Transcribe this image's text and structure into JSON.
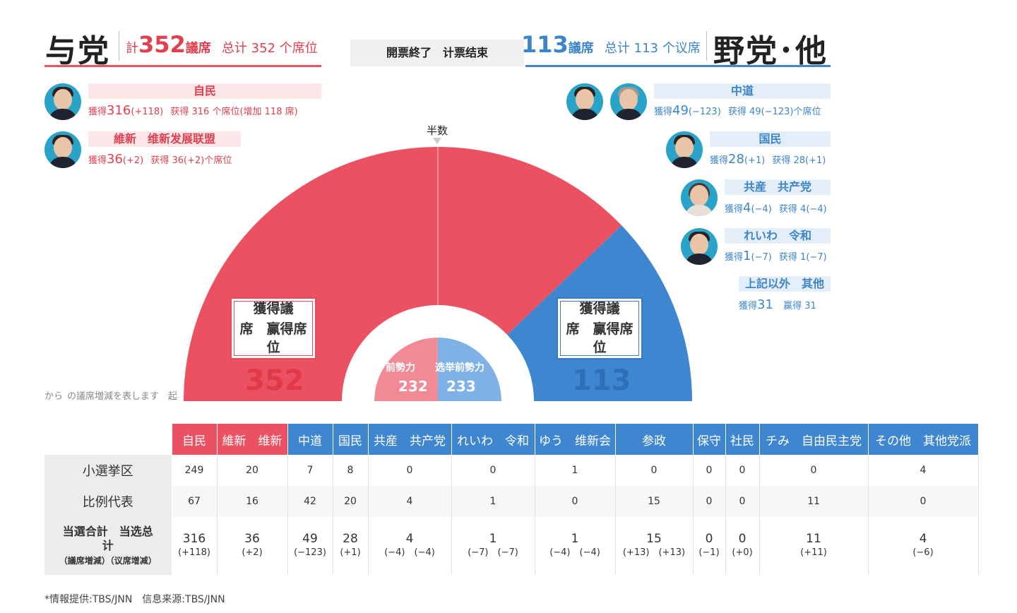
{
  "colors": {
    "ruling": "#ec5161",
    "opposition": "#3e86cf",
    "ruling_text": "#e0404f",
    "opposition_text": "#3d85c8"
  },
  "ruling": {
    "title": "与党",
    "prefix": "計",
    "seats": "352",
    "unit": "議席",
    "cn": "总计 352 个席位"
  },
  "status": "開票終了　计票结束",
  "opposition": {
    "title": "野党･他",
    "seats": "113",
    "unit": "議席",
    "cn": "总计 113 个议席"
  },
  "parties_left": [
    {
      "label": "自民",
      "prefix": "獲得",
      "num": "316",
      "chg": "(+118)",
      "cn": "获得 316 个席位(增加 118 席)"
    },
    {
      "label": "維新　维新发展联盟",
      "prefix": "獲得",
      "num": "36",
      "chg": "(+2)",
      "cn": "获得 36(+2)个席位"
    }
  ],
  "parties_right": [
    {
      "label": "中道",
      "prefix": "獲得",
      "num": "49",
      "chg": "(−123)",
      "cn": "获得 49(−123)个席位"
    },
    {
      "label": "国民",
      "prefix": "獲得",
      "num": "28",
      "chg": "(+1)",
      "cn": "获得 28(+1)"
    },
    {
      "label": "共産　共产党",
      "prefix": "獲得",
      "num": "4",
      "chg": "(−4)",
      "cn": "获得 4(−4)"
    },
    {
      "label": "れいわ　令和",
      "prefix": "獲得",
      "num": "1",
      "chg": "(−7)",
      "cn": "获得 1(−7)"
    },
    {
      "label": "上記以外　其他",
      "prefix": "獲得",
      "num": "31",
      "chg": "",
      "cn": "赢得 31"
    }
  ],
  "chart": {
    "half_label": "半数",
    "box_label_l1": "獲得議",
    "box_label_l2": "席　赢得席",
    "box_label_l3": "位",
    "prev_ruling_label": "前勢力",
    "prev_opp_label": "选举前勢力",
    "fade_text_1": "から",
    "fade_text_2": "の議席増減を表します　起"
  },
  "chart_data": {
    "type": "pie",
    "subtype": "half-donut",
    "total": 465,
    "majority_marker": "半数",
    "series": [
      {
        "name": "与党",
        "value": 352,
        "color": "#ec5161"
      },
      {
        "name": "野党･他",
        "value": 113,
        "color": "#3e86cf"
      }
    ],
    "inner_series": [
      {
        "name": "前勢力",
        "value": 232,
        "color": "#f08a94"
      },
      {
        "name": "选举前勢力",
        "value": 233,
        "color": "#7fb1e6"
      }
    ]
  },
  "table": {
    "headers": [
      {
        "label": "自民",
        "side": "r"
      },
      {
        "label": "維新　维新",
        "side": "r"
      },
      {
        "label": "中道",
        "side": "b"
      },
      {
        "label": "国民",
        "side": "b"
      },
      {
        "label": "共産　共产党",
        "side": "b"
      },
      {
        "label": "れいわ　令和",
        "side": "b"
      },
      {
        "label": "ゆう　维新会",
        "side": "b"
      },
      {
        "label": "参政",
        "side": "b"
      },
      {
        "label": "保守",
        "side": "b"
      },
      {
        "label": "社民",
        "side": "b"
      },
      {
        "label": "チみ　自由民主党",
        "side": "b"
      },
      {
        "label": "その他　其他党派",
        "side": "b"
      }
    ],
    "row1_label": "小選挙区",
    "row1": [
      "249",
      "20",
      "7",
      "8",
      "0",
      "0",
      "1",
      "0",
      "0",
      "0",
      "0",
      "4"
    ],
    "row2_label": "比例代表",
    "row2": [
      "67",
      "16",
      "42",
      "20",
      "4",
      "1",
      "0",
      "15",
      "0",
      "0",
      "11",
      "0"
    ],
    "row3_label_1": "当選合計　当选总",
    "row3_label_2": "计",
    "row3_label_3": "（議席増減）（议席增减）",
    "row3": [
      {
        "v": "316",
        "c": "(+118)"
      },
      {
        "v": "36",
        "c": "(+2)"
      },
      {
        "v": "49",
        "c": "(−123)"
      },
      {
        "v": "28",
        "c": "(+1)"
      },
      {
        "v": "4",
        "c": "(−4)　(−4)"
      },
      {
        "v": "1",
        "c": "(−7)　(−7)"
      },
      {
        "v": "1",
        "c": "(−4)　(−4)"
      },
      {
        "v": "15",
        "c": "(+13)　(+13)"
      },
      {
        "v": "0",
        "c": "(−1)"
      },
      {
        "v": "0",
        "c": "(+0)"
      },
      {
        "v": "11",
        "c": "(+11)"
      },
      {
        "v": "4",
        "c": "(−6)"
      }
    ]
  },
  "footnote": "*情報提供:TBS/JNN　信息来源:TBS/JNN"
}
